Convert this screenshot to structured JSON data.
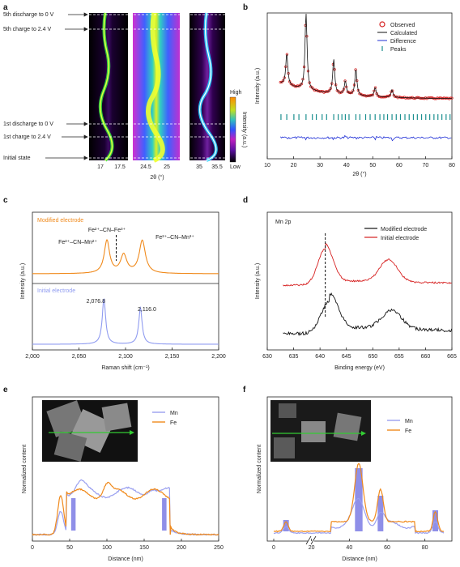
{
  "panel_labels": [
    "a",
    "b",
    "c",
    "d",
    "e",
    "f"
  ],
  "colors": {
    "observed": "#d62020",
    "calculated": "#111111",
    "difference": "#1f2fd6",
    "peaks": "#1b8f8f",
    "modified": "#f08a1c",
    "initial": "#8f9bf0",
    "mn": "#9aa0f0",
    "fe": "#f08a1c",
    "highlight": "#6a6ae0",
    "arrow": "#33cc33"
  },
  "panel_a": {
    "state_labels": [
      "5th discharge to 0 V",
      "5th charge to 2.4 V",
      "1st discharge to 0 V",
      "1st charge to 2.4 V",
      "Initial state"
    ],
    "x_ticks": [
      "17",
      "17.5",
      "24.5",
      "25",
      "35",
      "35.5"
    ],
    "xlabel": "2θ (°)",
    "colorbar": {
      "high": "High",
      "low": "Low",
      "label": "Intensity (a.u.)"
    }
  },
  "chart_data": [
    {
      "panel": "b",
      "type": "line",
      "xlabel": "2θ (°)",
      "ylabel": "Intensity (a.u.)",
      "xlim": [
        10,
        80
      ],
      "x_ticks": [
        "10",
        "20",
        "30",
        "40",
        "50",
        "60",
        "70",
        "80"
      ],
      "legend": [
        "Observed",
        "Calculated",
        "Difference",
        "Peaks"
      ],
      "legend_position": "top-right",
      "peaks_2theta": [
        17.4,
        24.7,
        35.2,
        39.6,
        43.6,
        50.9,
        57.3
      ],
      "tick_marks_2theta": [
        15.2,
        17.4,
        20.1,
        22.0,
        24.7,
        27.1,
        28.6,
        30.8,
        32.5,
        35.2,
        36.9,
        38.3,
        39.6,
        41.0,
        43.6,
        45.1,
        47.3,
        49.0,
        50.9,
        52.7,
        54.2,
        55.6,
        57.3,
        58.9,
        60.5,
        62.2,
        63.8,
        65.4,
        66.9,
        68.5,
        70.1,
        71.6,
        73.2,
        74.7,
        76.2,
        77.8,
        79.3
      ]
    },
    {
      "panel": "c",
      "type": "line",
      "xlabel": "Raman shift (cm⁻¹)",
      "ylabel": "Intensity (a.u.)",
      "xlim": [
        2000,
        2200
      ],
      "x_ticks": [
        "2,000",
        "2,050",
        "2,100",
        "2,150",
        "2,200"
      ],
      "series": [
        {
          "name": "Modified electrode",
          "peaks": [
            2080,
            2118
          ]
        },
        {
          "name": "Initial electrode",
          "peaks": [
            2076.8,
            2116.0
          ]
        }
      ],
      "annotations": [
        "Fe²⁺–CN–Fe³⁺",
        "Fe²⁺–CN–Mn²⁺",
        "Fe²⁺–CN–Mn³⁺",
        "2,076.8",
        "2,116.0"
      ]
    },
    {
      "panel": "d",
      "type": "line",
      "title": "Mn 2p",
      "xlabel": "Binding energy (eV)",
      "ylabel": "Intensity (a.u.)",
      "xlim": [
        630,
        665
      ],
      "x_ticks": [
        "630",
        "635",
        "640",
        "645",
        "650",
        "655",
        "660",
        "665"
      ],
      "series": [
        {
          "name": "Modified electrode",
          "peaks": [
            641.8,
            653.6
          ]
        },
        {
          "name": "Initial electrode",
          "peaks": [
            641.0,
            653.0
          ]
        }
      ],
      "legend_position": "top-right"
    },
    {
      "panel": "e",
      "type": "line",
      "xlabel": "Distance (nm)",
      "ylabel": "Normalized content",
      "xlim": [
        0,
        250
      ],
      "x_ticks": [
        "0",
        "50",
        "100",
        "150",
        "200",
        "250"
      ],
      "series": [
        {
          "name": "Mn"
        },
        {
          "name": "Fe"
        }
      ],
      "highlight_regions_nm": [
        [
          52,
          58
        ],
        [
          174,
          180
        ]
      ]
    },
    {
      "panel": "f",
      "type": "line",
      "xlabel": "Distance (nm)",
      "ylabel": "Normalized content",
      "x_ticks": [
        "0",
        "20",
        "40",
        "60",
        "80"
      ],
      "series": [
        {
          "name": "Mn"
        },
        {
          "name": "Fe"
        }
      ],
      "highlight_regions_nm": [
        [
          5,
          8
        ],
        [
          43,
          47
        ],
        [
          55,
          58
        ],
        [
          84,
          87
        ]
      ]
    }
  ]
}
